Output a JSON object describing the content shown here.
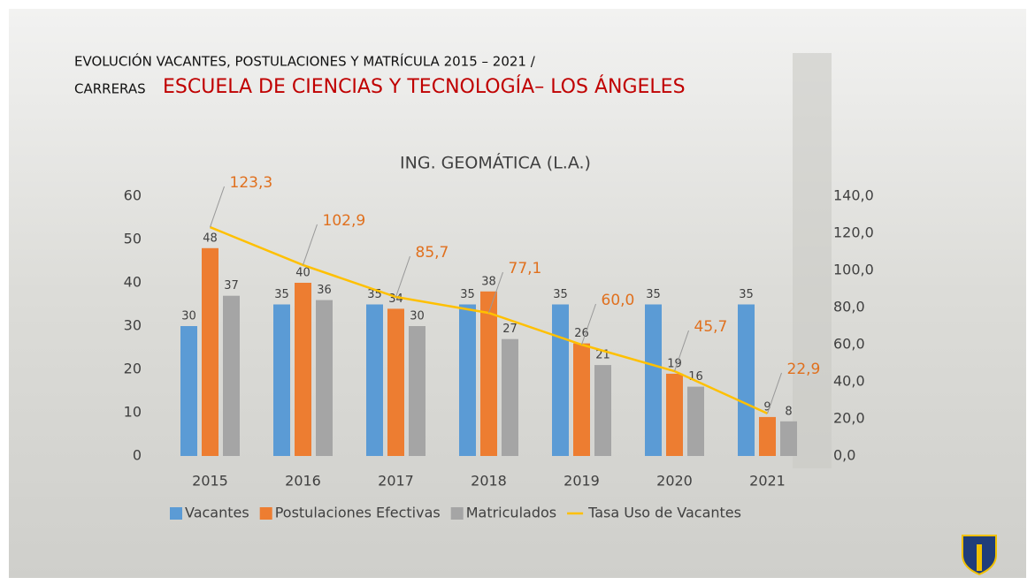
{
  "header": {
    "line1": "EVOLUCIÓN VACANTES, POSTULACIONES Y MATRÍCULA 2015  – 2021 /",
    "prefix": "CARRERAS",
    "school": "ESCUELA DE CIENCIAS Y TECNOLOGÍA– LOS ÁNGELES"
  },
  "chart_data": {
    "type": "bar",
    "title": "ING. GEOMÁTICA (L.A.)",
    "categories": [
      "2015",
      "2016",
      "2017",
      "2018",
      "2019",
      "2020",
      "2021"
    ],
    "series": [
      {
        "name": "Vacantes",
        "color": "#5b9bd5",
        "values": [
          30,
          35,
          35,
          35,
          35,
          35,
          35
        ]
      },
      {
        "name": "Postulaciones Efectivas",
        "color": "#ed7d31",
        "values": [
          48,
          40,
          34,
          38,
          26,
          19,
          9
        ]
      },
      {
        "name": "Matriculados",
        "color": "#a5a5a5",
        "values": [
          37,
          36,
          30,
          27,
          21,
          16,
          8
        ]
      },
      {
        "name": "Tasa Uso de Vacantes",
        "color": "#ffc000",
        "type": "line",
        "axis": "y2",
        "label_color": "#e0701e",
        "values": [
          123.3,
          102.9,
          85.7,
          77.1,
          60.0,
          45.7,
          22.9
        ],
        "value_labels": [
          "123,3",
          "102,9",
          "85,7",
          "77,1",
          "60,0",
          "45,7",
          "22,9"
        ]
      }
    ],
    "ylim": [
      0,
      60
    ],
    "yticks": [
      0,
      10,
      20,
      30,
      40,
      50,
      60
    ],
    "y2lim": [
      0,
      140
    ],
    "y2ticks": [
      {
        "value": 0,
        "label": "0,0"
      },
      {
        "value": 20,
        "label": "20,0"
      },
      {
        "value": 40,
        "label": "40,0"
      },
      {
        "value": 60,
        "label": "60,0"
      },
      {
        "value": 80,
        "label": "80,0"
      },
      {
        "value": 100,
        "label": "100,0"
      },
      {
        "value": 120,
        "label": "120,0"
      },
      {
        "value": 140,
        "label": "140,0"
      }
    ],
    "grid": false,
    "legend": "bottom"
  }
}
